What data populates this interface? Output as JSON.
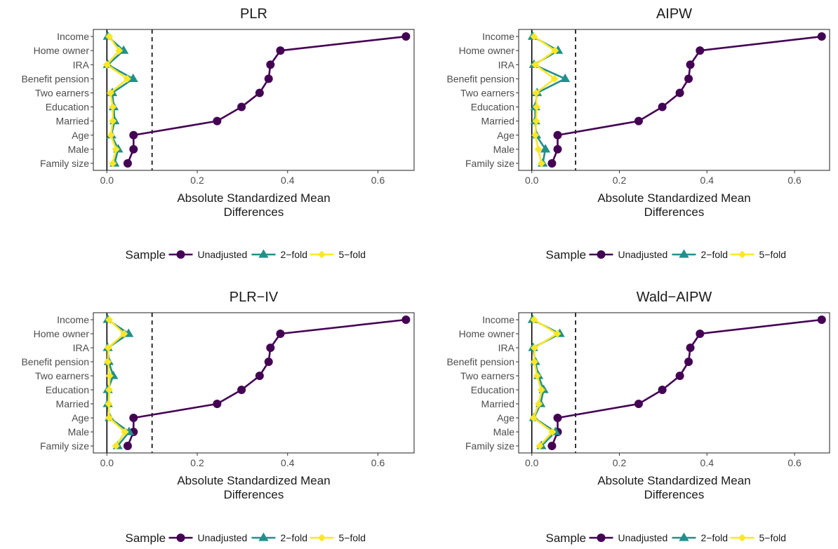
{
  "chart_data": [
    {
      "type": "line",
      "title": "PLR",
      "xlabel": "Absolute Standardized Mean Differences",
      "xlim": [
        -0.03,
        0.68
      ],
      "xticks": [
        0.0,
        0.2,
        0.4,
        0.6
      ],
      "xtick_labels": [
        "0.0",
        "0.2",
        "0.4",
        "0.6"
      ],
      "threshold": 0.1,
      "categories": [
        "Income",
        "Home owner",
        "IRA",
        "Benefit pension",
        "Two earners",
        "Education",
        "Married",
        "Age",
        "Male",
        "Family size"
      ],
      "series": [
        {
          "name": "Unadjusted",
          "values": [
            0.662,
            0.384,
            0.362,
            0.358,
            0.338,
            0.298,
            0.244,
            0.059,
            0.059,
            0.046
          ]
        },
        {
          "name": "2-fold",
          "values": [
            0.002,
            0.037,
            0.002,
            0.058,
            0.012,
            0.015,
            0.017,
            0.01,
            0.025,
            0.017
          ]
        },
        {
          "name": "5-fold",
          "values": [
            0.005,
            0.027,
            0.0,
            0.045,
            0.008,
            0.013,
            0.013,
            0.009,
            0.02,
            0.013
          ]
        }
      ],
      "legend": {
        "title": "Sample",
        "position": "bottom"
      },
      "grid": false
    },
    {
      "type": "line",
      "title": "AIPW",
      "xlabel": "Absolute Standardized Mean Differences",
      "xlim": [
        -0.03,
        0.68
      ],
      "xticks": [
        0.0,
        0.2,
        0.4,
        0.6
      ],
      "xtick_labels": [
        "0.0",
        "0.2",
        "0.4",
        "0.6"
      ],
      "threshold": 0.1,
      "categories": [
        "Income",
        "Home owner",
        "IRA",
        "Benefit pension",
        "Two earners",
        "Education",
        "Married",
        "Age",
        "Male",
        "Family size"
      ],
      "series": [
        {
          "name": "Unadjusted",
          "values": [
            0.662,
            0.384,
            0.362,
            0.358,
            0.338,
            0.298,
            0.244,
            0.059,
            0.059,
            0.046
          ]
        },
        {
          "name": "2-fold",
          "values": [
            0.002,
            0.06,
            0.005,
            0.076,
            0.012,
            0.008,
            0.008,
            0.01,
            0.031,
            0.025
          ]
        },
        {
          "name": "5-fold",
          "values": [
            0.005,
            0.053,
            0.008,
            0.052,
            0.01,
            0.011,
            0.01,
            0.008,
            0.015,
            0.022
          ]
        }
      ],
      "legend": {
        "title": "Sample",
        "position": "bottom"
      },
      "grid": false
    },
    {
      "type": "line",
      "title": "PLR−IV",
      "xlabel": "Absolute Standardized Mean Differences",
      "xlim": [
        -0.03,
        0.68
      ],
      "xticks": [
        0.0,
        0.2,
        0.4,
        0.6
      ],
      "xtick_labels": [
        "0.0",
        "0.2",
        "0.4",
        "0.6"
      ],
      "threshold": 0.1,
      "categories": [
        "Income",
        "Home owner",
        "IRA",
        "Benefit pension",
        "Two earners",
        "Education",
        "Married",
        "Age",
        "Male",
        "Family size"
      ],
      "series": [
        {
          "name": "Unadjusted",
          "values": [
            0.662,
            0.384,
            0.362,
            0.358,
            0.338,
            0.298,
            0.244,
            0.059,
            0.059,
            0.046
          ]
        },
        {
          "name": "2-fold",
          "values": [
            0.002,
            0.048,
            0.002,
            0.004,
            0.014,
            0.002,
            0.002,
            0.006,
            0.049,
            0.024
          ]
        },
        {
          "name": "5-fold",
          "values": [
            0.005,
            0.038,
            0.003,
            0.002,
            0.006,
            0.005,
            0.004,
            0.005,
            0.04,
            0.02
          ]
        }
      ],
      "legend": {
        "title": "Sample",
        "position": "bottom"
      },
      "grid": false
    },
    {
      "type": "line",
      "title": "Wald−AIPW",
      "xlabel": "Absolute Standardized Mean Differences",
      "xlim": [
        -0.03,
        0.68
      ],
      "xticks": [
        0.0,
        0.2,
        0.4,
        0.6
      ],
      "xtick_labels": [
        "0.0",
        "0.2",
        "0.4",
        "0.6"
      ],
      "threshold": 0.1,
      "categories": [
        "Income",
        "Home owner",
        "IRA",
        "Benefit pension",
        "Two earners",
        "Education",
        "Married",
        "Age",
        "Male",
        "Family size"
      ],
      "series": [
        {
          "name": "Unadjusted",
          "values": [
            0.662,
            0.384,
            0.362,
            0.358,
            0.338,
            0.298,
            0.244,
            0.059,
            0.059,
            0.046
          ]
        },
        {
          "name": "2-fold",
          "values": [
            0.002,
            0.064,
            0.003,
            0.008,
            0.015,
            0.027,
            0.02,
            0.005,
            0.054,
            0.022
          ]
        },
        {
          "name": "5-fold",
          "values": [
            0.005,
            0.058,
            0.006,
            0.006,
            0.012,
            0.022,
            0.016,
            0.004,
            0.047,
            0.018
          ]
        }
      ],
      "legend": {
        "title": "Sample",
        "position": "bottom"
      },
      "grid": false
    }
  ],
  "colors": {
    "Unadjusted": "#440154",
    "2-fold": "#21908C",
    "5-fold": "#FDE725",
    "axis": "#000000",
    "tick_text": "#4d4d4d"
  },
  "legend_items": [
    {
      "label": "Unadjusted",
      "shape": "circle"
    },
    {
      "label": "2−fold",
      "shape": "triangle"
    },
    {
      "label": "5−fold",
      "shape": "diamond"
    }
  ]
}
